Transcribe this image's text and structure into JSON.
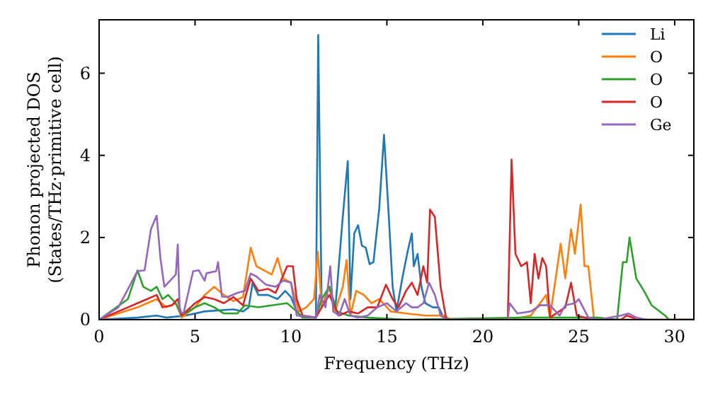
{
  "chart_data": {
    "type": "line",
    "xlabel": "Frequency (THz)",
    "ylabel": "Phonon projected DOS\n(States/THz·primitive cell)",
    "xlim": [
      0,
      31
    ],
    "ylim": [
      0,
      7.3
    ],
    "xticks": [
      0,
      5,
      10,
      15,
      20,
      25,
      30
    ],
    "yticks": [
      0,
      2,
      4,
      6
    ],
    "grid": false,
    "legend": "top right",
    "marker": "none",
    "line_style": "solid",
    "series": [
      {
        "name": "Li",
        "color": "#1f77b4",
        "x": [
          0,
          2,
          3,
          3.5,
          4.5,
          5.5,
          7,
          7.5,
          7.8,
          8,
          8.3,
          8.8,
          9.3,
          9.7,
          10,
          10.3,
          10.5,
          11.3,
          11.42,
          11.6,
          12,
          12.3,
          12.7,
          12.96,
          13.1,
          13.3,
          13.5,
          13.7,
          13.9,
          14.1,
          14.3,
          14.6,
          14.85,
          15.1,
          15.3,
          15.5,
          15.8,
          16.1,
          16.3,
          16.4,
          16.6,
          16.8,
          17,
          17.4,
          17.7,
          17.9,
          18.1
        ],
        "values": [
          0,
          0.05,
          0.1,
          0.05,
          0.1,
          0.2,
          0.25,
          0.2,
          0.3,
          0.9,
          0.6,
          0.6,
          0.5,
          0.7,
          0.55,
          0.2,
          0.1,
          0.05,
          6.93,
          0.3,
          0.8,
          0.2,
          2.5,
          3.86,
          0.5,
          2.1,
          2.3,
          1.8,
          1.75,
          1.35,
          1.4,
          2.7,
          4.5,
          2.5,
          0.8,
          0.2,
          1,
          1.7,
          2.1,
          1.3,
          1.6,
          0.8,
          0.4,
          0.3,
          0.3,
          0.1,
          0
        ]
      },
      {
        "name": "O",
        "color": "#ff7f0e",
        "x": [
          0,
          2,
          2.5,
          3,
          3.5,
          4,
          4.3,
          5,
          5.5,
          6,
          6.5,
          7,
          7.5,
          7.9,
          8.2,
          8.6,
          9,
          9.3,
          9.6,
          10,
          10.4,
          10.8,
          11.2,
          11.4,
          11.6,
          12,
          12.3,
          12.7,
          12.9,
          13.1,
          13.4,
          13.8,
          14.2,
          14.6,
          15.2,
          16,
          17,
          18,
          18.3,
          21.5,
          22,
          22.5,
          23.3,
          23.5,
          24.06,
          24.3,
          24.6,
          24.8,
          25.1,
          25.3,
          25.5,
          25.8,
          31
        ],
        "values": [
          0,
          0.3,
          0.4,
          0.5,
          0.3,
          0.4,
          0.05,
          0.3,
          0.6,
          0.8,
          0.6,
          0.45,
          0.55,
          1.75,
          1.3,
          1.2,
          1.1,
          1.5,
          1,
          0.9,
          0.2,
          0.3,
          0.5,
          1.65,
          0.3,
          0.8,
          0.2,
          0.8,
          1.45,
          0.1,
          0.7,
          0.6,
          0.4,
          0.5,
          0.2,
          0.15,
          0.1,
          0.1,
          0,
          0,
          0.05,
          0.1,
          0.6,
          0.05,
          1.85,
          1,
          2.2,
          1.6,
          2.8,
          1.3,
          1.3,
          0,
          0
        ]
      },
      {
        "name": "O",
        "color": "#2ca02c",
        "x": [
          0,
          1.5,
          2,
          2.3,
          2.7,
          3,
          3.3,
          3.6,
          4,
          4.3,
          5,
          5.5,
          6,
          6.5,
          7.2,
          7.6,
          8.3,
          9,
          9.8,
          10.3,
          10.6,
          11.3,
          11.6,
          12,
          12.4,
          13,
          14,
          16,
          22,
          24,
          26,
          27,
          27.3,
          27.5,
          27.65,
          28,
          28.4,
          28.8,
          29.5,
          29.7,
          31
        ],
        "values": [
          0,
          0.5,
          1.2,
          0.8,
          0.7,
          0.8,
          0.5,
          0.6,
          0.4,
          0.1,
          0.3,
          0.4,
          0.3,
          0.15,
          0.15,
          0.35,
          0.3,
          0.35,
          0.4,
          0.2,
          0.05,
          0.05,
          0.5,
          0.8,
          0.2,
          0.1,
          0.05,
          0,
          0.05,
          0.05,
          0.05,
          0,
          1.4,
          1.4,
          2,
          1,
          0.7,
          0.35,
          0.1,
          0,
          0
        ]
      },
      {
        "name": "O",
        "color": "#d62728",
        "x": [
          0,
          1.5,
          2,
          2.5,
          3,
          3.3,
          3.8,
          4.1,
          4.3,
          5,
          5.5,
          6,
          6.5,
          7,
          7.5,
          7.9,
          8.3,
          8.8,
          9.2,
          9.8,
          10.1,
          10.3,
          10.6,
          11.3,
          11.6,
          12,
          12.5,
          13,
          13.5,
          14,
          14.5,
          14.95,
          15.3,
          15.6,
          16,
          16.3,
          16.6,
          16.9,
          17.1,
          17.25,
          17.5,
          17.8,
          18.1,
          21.3,
          21.5,
          21.7,
          22,
          22.3,
          22.5,
          22.7,
          22.9,
          23.1,
          23.3,
          23.5,
          24.3,
          24.6,
          24.9,
          25.3,
          25.8,
          27.2,
          27.5,
          27.8,
          28,
          31
        ],
        "values": [
          0,
          0.3,
          0.4,
          0.5,
          0.6,
          0.3,
          0.35,
          0.5,
          0.1,
          0.4,
          0.55,
          0.5,
          0.4,
          0.55,
          0.35,
          1,
          0.7,
          0.75,
          0.65,
          1.3,
          1.3,
          0.5,
          0.1,
          0.05,
          0.3,
          0.6,
          0.1,
          0.2,
          0.15,
          0.3,
          0.3,
          0.85,
          0.5,
          0.3,
          0.7,
          0.9,
          0.6,
          1.3,
          0.9,
          2.68,
          2.5,
          0.8,
          0,
          0,
          3.9,
          1.6,
          1.3,
          1.4,
          0.4,
          1.6,
          1,
          1.5,
          1.3,
          0.05,
          0.3,
          0.9,
          0.1,
          0.05,
          0,
          0,
          0.1,
          0.05,
          0,
          0
        ]
      },
      {
        "name": "Ge",
        "color": "#9467bd",
        "x": [
          0,
          1,
          2,
          2.37,
          2.7,
          3,
          3.2,
          3.4,
          3.7,
          4,
          4.1,
          4.2,
          4.4,
          4.9,
          5.2,
          5.5,
          5.6,
          6.1,
          6.2,
          6.4,
          6.7,
          7.2,
          7.6,
          7.9,
          8.2,
          8.7,
          9.2,
          9.6,
          10,
          10.3,
          11.3,
          11.5,
          11.8,
          12.05,
          12.2,
          12.5,
          12.8,
          13.1,
          13.5,
          14,
          14.5,
          15,
          15.5,
          16,
          16.3,
          16.6,
          16.9,
          17.2,
          17.5,
          17.8,
          18.1,
          21.3,
          21.4,
          21.8,
          22.5,
          23,
          23.5,
          24,
          24.3,
          24.8,
          25,
          25.5,
          26,
          27.2,
          27.6,
          28,
          28.5
        ],
        "values": [
          0,
          0.3,
          1.18,
          1.2,
          2.2,
          2.53,
          1.48,
          0.8,
          0.95,
          1.1,
          1.83,
          0.2,
          0.15,
          1.18,
          1.2,
          0.95,
          1.13,
          1.18,
          1.4,
          0.56,
          0.55,
          0.65,
          0.7,
          1.12,
          1.05,
          0.85,
          0.8,
          0.95,
          0.9,
          0.1,
          0.05,
          0.6,
          0.3,
          1.3,
          0.2,
          0.1,
          0.5,
          0.1,
          0.05,
          0.1,
          0.3,
          0.4,
          0.2,
          0.4,
          0.3,
          0.3,
          0.4,
          0.9,
          0.6,
          0.1,
          0,
          0,
          0.4,
          0.15,
          0.2,
          0.35,
          0.35,
          0.1,
          0.35,
          0.4,
          0.5,
          0.05,
          0,
          0.1,
          0.15,
          0.05,
          0
        ]
      }
    ]
  }
}
